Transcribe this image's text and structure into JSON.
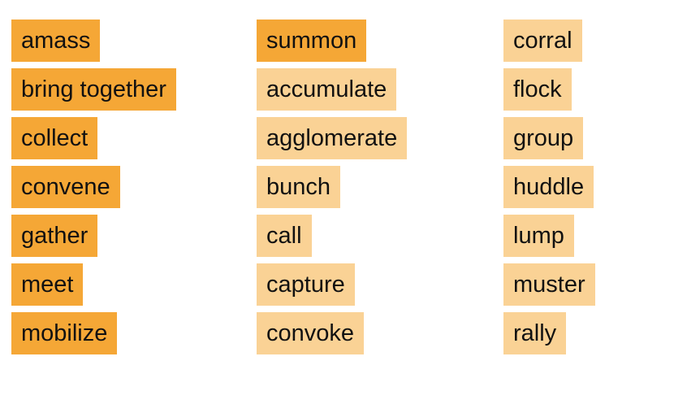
{
  "colors": {
    "strong": "#f5a736",
    "light": "#fad295",
    "text": "#111111"
  },
  "columns": [
    {
      "items": [
        {
          "word": "amass",
          "style": "strong"
        },
        {
          "word": "bring together",
          "style": "strong"
        },
        {
          "word": "collect",
          "style": "strong"
        },
        {
          "word": "convene",
          "style": "strong"
        },
        {
          "word": "gather",
          "style": "strong"
        },
        {
          "word": "meet",
          "style": "strong"
        },
        {
          "word": "mobilize",
          "style": "strong"
        }
      ]
    },
    {
      "items": [
        {
          "word": "summon",
          "style": "strong"
        },
        {
          "word": "accumulate",
          "style": "light"
        },
        {
          "word": "agglomerate",
          "style": "light"
        },
        {
          "word": "bunch",
          "style": "light"
        },
        {
          "word": "call",
          "style": "light"
        },
        {
          "word": "capture",
          "style": "light"
        },
        {
          "word": "convoke",
          "style": "light"
        }
      ]
    },
    {
      "items": [
        {
          "word": "corral",
          "style": "light"
        },
        {
          "word": "flock",
          "style": "light"
        },
        {
          "word": "group",
          "style": "light"
        },
        {
          "word": "huddle",
          "style": "light"
        },
        {
          "word": "lump",
          "style": "light"
        },
        {
          "word": "muster",
          "style": "light"
        },
        {
          "word": "rally",
          "style": "light"
        }
      ]
    }
  ]
}
